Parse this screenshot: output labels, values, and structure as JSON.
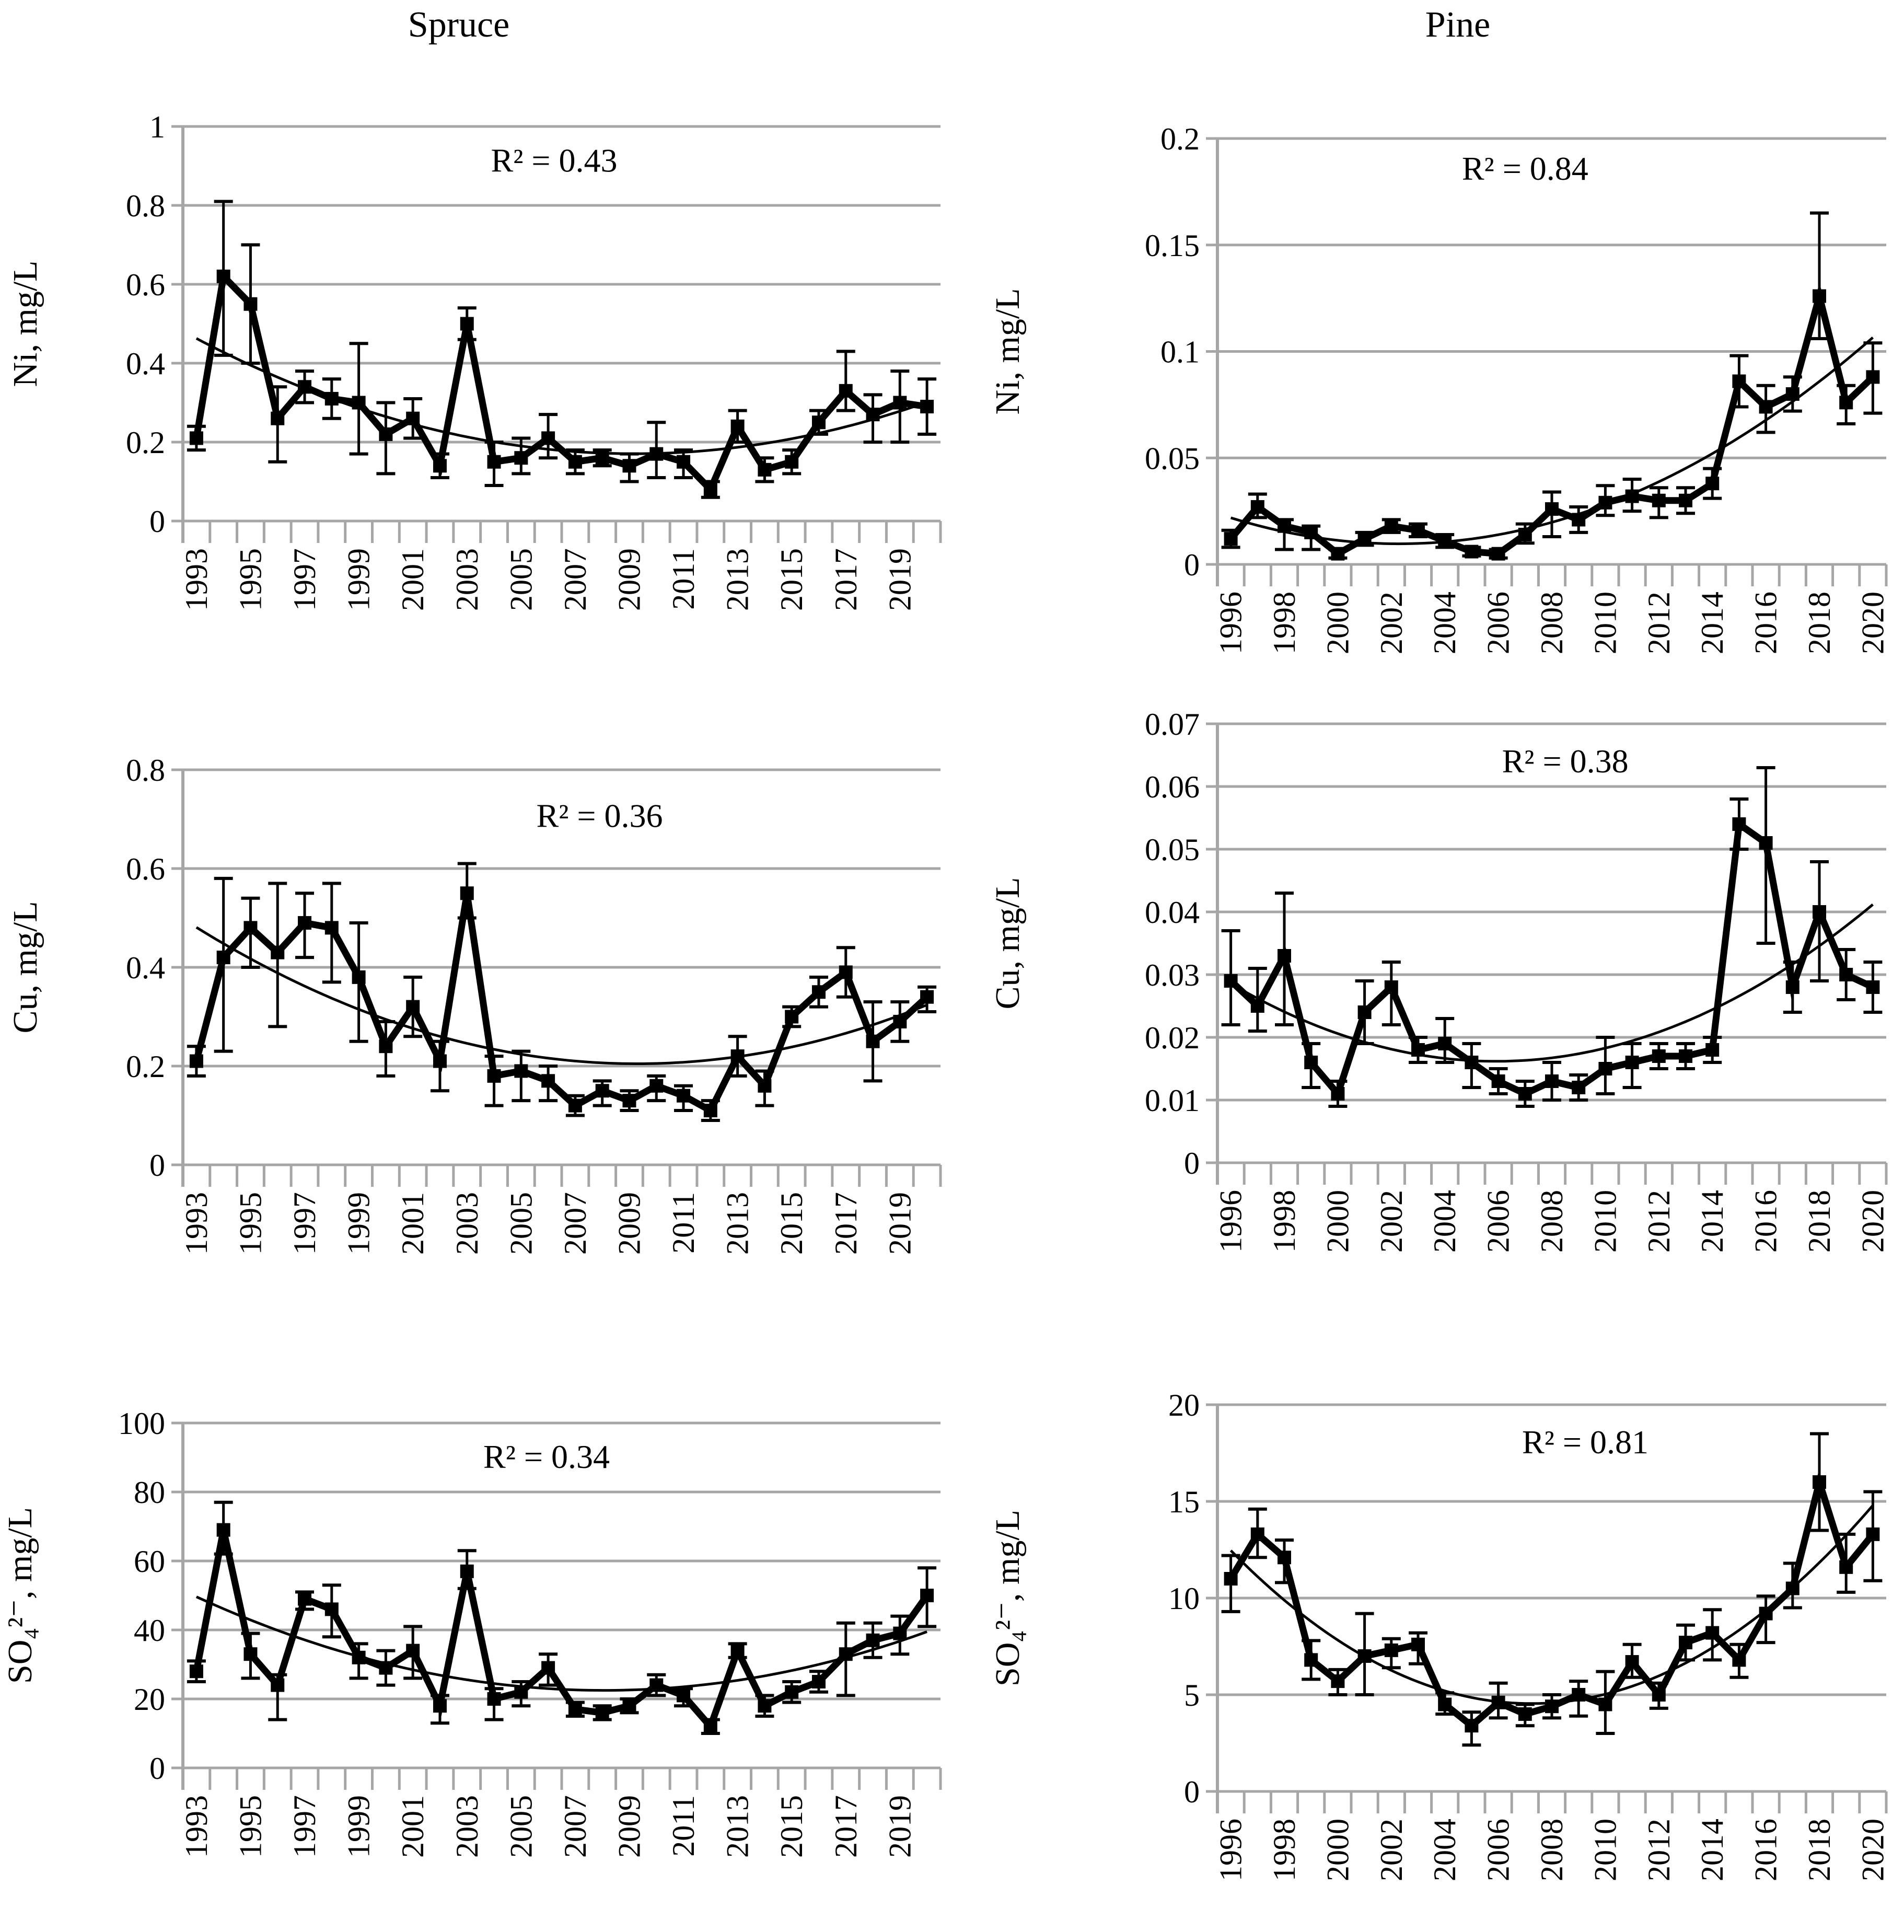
{
  "figure": {
    "columns": [
      {
        "title": "Spruce"
      },
      {
        "title": "Pine"
      }
    ],
    "gridline_color": "#A6A6A6",
    "series_color": "#000000",
    "trendline_style": "thin black polynomial curve",
    "marker": "filled black square with error bars"
  },
  "chart_data": [
    {
      "id": "spruce-ni",
      "type": "line",
      "column": "Spruce",
      "ylabel": "Ni, mg/L",
      "r2_label": "R² = 0.43",
      "trendline": "polynomial",
      "grid": true,
      "legend": "none",
      "ylim": [
        0,
        1
      ],
      "yticks": [
        "0",
        "0.2",
        "0.4",
        "0.6",
        "0.8",
        "1"
      ],
      "xtick_labels": [
        "1993",
        "1995",
        "1997",
        "1999",
        "2001",
        "2003",
        "2005",
        "2007",
        "2009",
        "2011",
        "2013",
        "2015",
        "2017",
        "2019"
      ],
      "years": [
        1993,
        1994,
        1995,
        1996,
        1997,
        1998,
        1999,
        2000,
        2001,
        2002,
        2003,
        2004,
        2005,
        2006,
        2007,
        2008,
        2009,
        2010,
        2011,
        2012,
        2013,
        2014,
        2015,
        2016,
        2017,
        2018,
        2019,
        2020
      ],
      "values": [
        0.21,
        0.62,
        0.55,
        0.26,
        0.34,
        0.31,
        0.3,
        0.22,
        0.26,
        0.14,
        0.5,
        0.15,
        0.16,
        0.21,
        0.15,
        0.16,
        0.14,
        0.17,
        0.15,
        0.08,
        0.24,
        0.13,
        0.15,
        0.25,
        0.33,
        0.27,
        0.3,
        0.29
      ],
      "err_up": [
        0.03,
        0.19,
        0.15,
        0.08,
        0.04,
        0.05,
        0.15,
        0.08,
        0.05,
        0.03,
        0.04,
        0.05,
        0.05,
        0.06,
        0.03,
        0.02,
        0.03,
        0.08,
        0.03,
        0.02,
        0.04,
        0.03,
        0.03,
        0.03,
        0.1,
        0.05,
        0.08,
        0.07
      ],
      "err_down": [
        0.03,
        0.2,
        0.15,
        0.11,
        0.04,
        0.05,
        0.13,
        0.1,
        0.05,
        0.03,
        0.04,
        0.06,
        0.04,
        0.05,
        0.03,
        0.02,
        0.04,
        0.06,
        0.04,
        0.02,
        0.04,
        0.03,
        0.03,
        0.03,
        0.05,
        0.07,
        0.1,
        0.07
      ]
    },
    {
      "id": "pine-ni",
      "type": "line",
      "column": "Pine",
      "ylabel": "Ni, mg/L",
      "r2_label": "R² = 0.84",
      "trendline": "polynomial",
      "grid": true,
      "legend": "none",
      "ylim": [
        0,
        0.2
      ],
      "yticks": [
        "0",
        "0.05",
        "0.1",
        "0.15",
        "0.2"
      ],
      "xtick_labels": [
        "1996",
        "1998",
        "2000",
        "2002",
        "2004",
        "2006",
        "2008",
        "2010",
        "2012",
        "2014",
        "2016",
        "2018",
        "2020"
      ],
      "years": [
        1996,
        1997,
        1998,
        1999,
        2000,
        2001,
        2002,
        2003,
        2004,
        2005,
        2006,
        2007,
        2008,
        2009,
        2010,
        2011,
        2012,
        2013,
        2014,
        2015,
        2016,
        2017,
        2018,
        2019,
        2020
      ],
      "values": [
        0.012,
        0.027,
        0.018,
        0.015,
        0.005,
        0.012,
        0.018,
        0.016,
        0.011,
        0.006,
        0.005,
        0.014,
        0.026,
        0.021,
        0.029,
        0.032,
        0.03,
        0.03,
        0.038,
        0.086,
        0.074,
        0.08,
        0.126,
        0.076,
        0.088
      ],
      "err_up": [
        0.004,
        0.006,
        0.003,
        0.003,
        0.002,
        0.003,
        0.003,
        0.003,
        0.003,
        0.002,
        0.002,
        0.005,
        0.008,
        0.006,
        0.008,
        0.008,
        0.006,
        0.006,
        0.007,
        0.012,
        0.01,
        0.008,
        0.039,
        0.008,
        0.016
      ],
      "err_down": [
        0.004,
        0.005,
        0.011,
        0.008,
        0.002,
        0.003,
        0.003,
        0.003,
        0.003,
        0.002,
        0.002,
        0.004,
        0.013,
        0.006,
        0.006,
        0.007,
        0.008,
        0.006,
        0.007,
        0.012,
        0.012,
        0.008,
        0.02,
        0.01,
        0.017
      ]
    },
    {
      "id": "spruce-cu",
      "type": "line",
      "column": "Spruce",
      "ylabel": "Cu, mg/L",
      "r2_label": "R² = 0.36",
      "trendline": "polynomial",
      "grid": true,
      "legend": "none",
      "ylim": [
        0,
        0.8
      ],
      "yticks": [
        "0",
        "0.2",
        "0.4",
        "0.6",
        "0.8"
      ],
      "xtick_labels": [
        "1993",
        "1995",
        "1997",
        "1999",
        "2001",
        "2003",
        "2005",
        "2007",
        "2009",
        "2011",
        "2013",
        "2015",
        "2017",
        "2019"
      ],
      "years": [
        1993,
        1994,
        1995,
        1996,
        1997,
        1998,
        1999,
        2000,
        2001,
        2002,
        2003,
        2004,
        2005,
        2006,
        2007,
        2008,
        2009,
        2010,
        2011,
        2012,
        2013,
        2014,
        2015,
        2016,
        2017,
        2018,
        2019,
        2020
      ],
      "values": [
        0.21,
        0.42,
        0.48,
        0.43,
        0.49,
        0.48,
        0.38,
        0.24,
        0.32,
        0.21,
        0.55,
        0.18,
        0.19,
        0.17,
        0.12,
        0.15,
        0.13,
        0.16,
        0.14,
        0.11,
        0.22,
        0.16,
        0.3,
        0.35,
        0.39,
        0.25,
        0.29,
        0.34
      ],
      "err_up": [
        0.03,
        0.16,
        0.06,
        0.14,
        0.06,
        0.09,
        0.11,
        0.05,
        0.06,
        0.04,
        0.06,
        0.04,
        0.04,
        0.03,
        0.02,
        0.02,
        0.02,
        0.02,
        0.02,
        0.02,
        0.04,
        0.03,
        0.02,
        0.03,
        0.05,
        0.08,
        0.04,
        0.02
      ],
      "err_down": [
        0.03,
        0.19,
        0.08,
        0.15,
        0.07,
        0.11,
        0.13,
        0.06,
        0.06,
        0.06,
        0.05,
        0.06,
        0.06,
        0.04,
        0.02,
        0.03,
        0.02,
        0.03,
        0.03,
        0.02,
        0.04,
        0.04,
        0.02,
        0.03,
        0.05,
        0.08,
        0.04,
        0.03
      ]
    },
    {
      "id": "pine-cu",
      "type": "line",
      "column": "Pine",
      "ylabel": "Cu, mg/L",
      "r2_label": "R² = 0.38",
      "trendline": "polynomial",
      "grid": true,
      "legend": "none",
      "ylim": [
        0,
        0.07
      ],
      "yticks": [
        "0",
        "0.01",
        "0.02",
        "0.03",
        "0.04",
        "0.05",
        "0.06",
        "0.07"
      ],
      "xtick_labels": [
        "1996",
        "1998",
        "2000",
        "2002",
        "2004",
        "2006",
        "2008",
        "2010",
        "2012",
        "2014",
        "2016",
        "2018",
        "2020"
      ],
      "years": [
        1996,
        1997,
        1998,
        1999,
        2000,
        2001,
        2002,
        2003,
        2004,
        2005,
        2006,
        2007,
        2008,
        2009,
        2010,
        2011,
        2012,
        2013,
        2014,
        2015,
        2016,
        2017,
        2018,
        2019,
        2020
      ],
      "values": [
        0.029,
        0.025,
        0.033,
        0.016,
        0.011,
        0.024,
        0.028,
        0.018,
        0.019,
        0.016,
        0.013,
        0.011,
        0.013,
        0.012,
        0.015,
        0.016,
        0.017,
        0.017,
        0.018,
        0.054,
        0.051,
        0.028,
        0.04,
        0.03,
        0.028
      ],
      "err_up": [
        0.008,
        0.006,
        0.01,
        0.003,
        0.002,
        0.005,
        0.004,
        0.002,
        0.004,
        0.003,
        0.002,
        0.002,
        0.003,
        0.002,
        0.005,
        0.003,
        0.002,
        0.002,
        0.002,
        0.004,
        0.012,
        0.004,
        0.008,
        0.004,
        0.004
      ],
      "err_down": [
        0.007,
        0.004,
        0.011,
        0.004,
        0.002,
        0.005,
        0.006,
        0.002,
        0.003,
        0.004,
        0.002,
        0.002,
        0.003,
        0.002,
        0.004,
        0.004,
        0.002,
        0.002,
        0.002,
        0.004,
        0.016,
        0.004,
        0.011,
        0.004,
        0.004
      ]
    },
    {
      "id": "spruce-so4",
      "type": "line",
      "column": "Spruce",
      "ylabel": "SO₄²⁻, mg/L",
      "r2_label": "R² = 0.34",
      "trendline": "polynomial",
      "grid": true,
      "legend": "none",
      "ylim": [
        0,
        100
      ],
      "yticks": [
        "0",
        "20",
        "40",
        "60",
        "80",
        "100"
      ],
      "xtick_labels": [
        "1993",
        "1995",
        "1997",
        "1999",
        "2001",
        "2003",
        "2005",
        "2007",
        "2009",
        "2011",
        "2013",
        "2015",
        "2017",
        "2019"
      ],
      "years": [
        1993,
        1994,
        1995,
        1996,
        1997,
        1998,
        1999,
        2000,
        2001,
        2002,
        2003,
        2004,
        2005,
        2006,
        2007,
        2008,
        2009,
        2010,
        2011,
        2012,
        2013,
        2014,
        2015,
        2016,
        2017,
        2018,
        2019,
        2020
      ],
      "values": [
        28,
        69,
        33,
        24,
        49,
        46,
        32,
        29,
        34,
        18,
        57,
        20,
        22,
        29,
        17,
        16,
        18,
        24,
        21,
        12,
        34,
        18,
        22,
        25,
        33,
        37,
        39,
        50
      ],
      "err_up": [
        3,
        8,
        6,
        3,
        2,
        7,
        4,
        5,
        7,
        3,
        6,
        3,
        3,
        4,
        2,
        2,
        2,
        3,
        2,
        2,
        2,
        3,
        3,
        3,
        9,
        5,
        5,
        8
      ],
      "err_down": [
        3,
        7,
        7,
        10,
        3,
        8,
        6,
        5,
        8,
        5,
        5,
        6,
        4,
        5,
        2,
        2,
        2,
        3,
        3,
        2,
        2,
        3,
        3,
        3,
        12,
        5,
        6,
        9
      ]
    },
    {
      "id": "pine-so4",
      "type": "line",
      "column": "Pine",
      "ylabel": "SO₄²⁻, mg/L",
      "r2_label": "R² = 0.81",
      "trendline": "polynomial",
      "grid": true,
      "legend": "none",
      "ylim": [
        0,
        20
      ],
      "yticks": [
        "0",
        "5",
        "10",
        "15",
        "20"
      ],
      "xtick_labels": [
        "1996",
        "1998",
        "2000",
        "2002",
        "2004",
        "2006",
        "2008",
        "2010",
        "2012",
        "2014",
        "2016",
        "2018",
        "2020"
      ],
      "years": [
        1996,
        1997,
        1998,
        1999,
        2000,
        2001,
        2002,
        2003,
        2004,
        2005,
        2006,
        2007,
        2008,
        2009,
        2010,
        2011,
        2012,
        2013,
        2014,
        2015,
        2016,
        2017,
        2018,
        2019,
        2020
      ],
      "values": [
        11.0,
        13.3,
        12.1,
        6.8,
        5.7,
        7.0,
        7.3,
        7.6,
        4.5,
        3.4,
        4.6,
        4.0,
        4.4,
        5.0,
        4.5,
        6.7,
        5.0,
        7.7,
        8.2,
        6.8,
        9.2,
        10.5,
        16.0,
        11.6,
        13.3
      ],
      "err_up": [
        1.2,
        1.3,
        0.9,
        1.0,
        0.6,
        2.2,
        0.6,
        0.6,
        0.6,
        0.7,
        1.0,
        0.5,
        0.6,
        0.7,
        1.7,
        0.9,
        0.6,
        0.9,
        1.2,
        0.8,
        0.9,
        1.3,
        2.5,
        1.7,
        2.2
      ],
      "err_down": [
        1.7,
        1.2,
        1.3,
        1.0,
        0.7,
        2.0,
        0.9,
        1.0,
        0.5,
        1.0,
        0.8,
        0.6,
        0.6,
        1.1,
        1.5,
        0.8,
        0.7,
        0.9,
        1.4,
        0.9,
        1.5,
        1.0,
        2.5,
        1.3,
        2.4
      ]
    }
  ]
}
